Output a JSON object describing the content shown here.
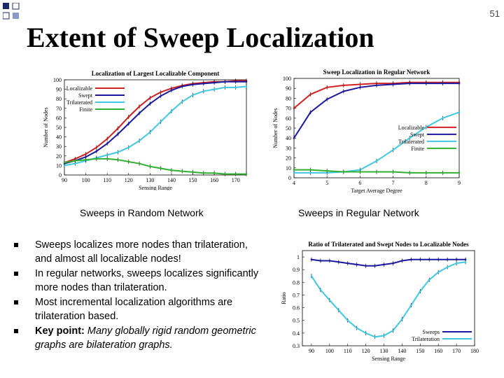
{
  "slide": {
    "title": "Extent of Sweep Localization",
    "page_number": "51",
    "caption_left": "Sweeps in Random Network",
    "caption_right": "Sweeps in Regular Network",
    "bullets": [
      {
        "text": "Sweeps localizes more nodes than trilateration, and almost all localizable nodes!"
      },
      {
        "text": "In regular networks, sweeps localizes significantly more nodes than trilateration."
      },
      {
        "text": "Most incremental localization algorithms are trilateration based."
      },
      {
        "bold": "Key point:",
        "italic": " Many globally rigid random geometric graphs are bilateration graphs."
      }
    ],
    "colors": {
      "localizable": "#d02020",
      "swept": "#1a1aa0",
      "trilaterated": "#40c8e0",
      "finite": "#30b030"
    }
  },
  "chart_data": [
    {
      "type": "line",
      "title": "Localization of Largest Localizable Component",
      "xlabel": "Sensing Range",
      "ylabel": "Number of Nodes",
      "xlim": [
        90,
        175
      ],
      "ylim": [
        0,
        100
      ],
      "xticks": [
        90,
        100,
        110,
        120,
        130,
        140,
        150,
        160,
        170
      ],
      "yticks": [
        0,
        10,
        20,
        30,
        40,
        50,
        60,
        70,
        80,
        90,
        100
      ],
      "x": [
        90,
        95,
        100,
        105,
        110,
        115,
        120,
        125,
        130,
        135,
        140,
        145,
        150,
        155,
        160,
        165,
        170,
        175
      ],
      "series": [
        {
          "name": "Localizable",
          "values": [
            13,
            17,
            22,
            29,
            38,
            49,
            61,
            72,
            81,
            87,
            91,
            94,
            96,
            97,
            98,
            98,
            99,
            99
          ]
        },
        {
          "name": "Swept",
          "values": [
            12,
            15,
            19,
            25,
            33,
            43,
            54,
            65,
            75,
            83,
            89,
            93,
            95,
            96,
            97,
            98,
            98,
            98
          ]
        },
        {
          "name": "Trilaterated",
          "values": [
            10,
            12,
            15,
            18,
            21,
            24,
            29,
            36,
            45,
            56,
            67,
            77,
            84,
            88,
            90,
            92,
            92,
            93
          ]
        },
        {
          "name": "Finite",
          "values": [
            13,
            15,
            16,
            17,
            17,
            16,
            14,
            12,
            9,
            7,
            5,
            4,
            3,
            2,
            2,
            1,
            1,
            1
          ]
        }
      ],
      "legend": "top-left"
    },
    {
      "type": "line",
      "title": "Sweep Localization in Regular Network",
      "xlabel": "Target Average Degree",
      "ylabel": "Number of Nodes",
      "xlim": [
        4,
        9
      ],
      "ylim": [
        0,
        100
      ],
      "xticks": [
        4,
        5,
        6,
        7,
        8,
        9
      ],
      "yticks": [
        0,
        10,
        20,
        30,
        40,
        50,
        60,
        70,
        80,
        90,
        100
      ],
      "x": [
        4,
        4.5,
        5,
        5.5,
        6,
        6.5,
        7,
        7.5,
        8,
        8.5,
        9
      ],
      "series": [
        {
          "name": "Localizable",
          "values": [
            70,
            84,
            91,
            93,
            94,
            95,
            95,
            96,
            96,
            96,
            96
          ]
        },
        {
          "name": "Swept",
          "values": [
            40,
            66,
            79,
            87,
            91,
            93,
            94,
            95,
            95,
            95,
            95
          ]
        },
        {
          "name": "Trilaterated",
          "values": [
            5,
            5,
            5,
            6,
            8,
            17,
            28,
            40,
            51,
            60,
            66
          ]
        },
        {
          "name": "Finite",
          "values": [
            8,
            8,
            7,
            6,
            6,
            6,
            6,
            5,
            5,
            5,
            5
          ]
        }
      ],
      "legend": "center-right"
    },
    {
      "type": "line",
      "title": "Ratio of Trilaterated and Swept Nodes to Localizable Nodes",
      "xlabel": "Sensing Range",
      "ylabel": "Ratio",
      "xlim": [
        85,
        180
      ],
      "ylim": [
        0.3,
        1.05
      ],
      "xticks": [
        90,
        100,
        110,
        120,
        130,
        140,
        150,
        160,
        170,
        180
      ],
      "yticks": [
        0.3,
        0.4,
        0.5,
        0.6,
        0.7,
        0.8,
        0.9,
        1
      ],
      "x": [
        90,
        95,
        100,
        105,
        110,
        115,
        120,
        125,
        130,
        135,
        140,
        145,
        150,
        155,
        160,
        165,
        170,
        175
      ],
      "series": [
        {
          "name": "Sweeps",
          "values": [
            0.98,
            0.97,
            0.97,
            0.96,
            0.95,
            0.94,
            0.93,
            0.93,
            0.94,
            0.95,
            0.97,
            0.98,
            0.98,
            0.98,
            0.98,
            0.98,
            0.98,
            0.98
          ]
        },
        {
          "name": "Trilateration",
          "values": [
            0.85,
            0.74,
            0.66,
            0.58,
            0.5,
            0.44,
            0.4,
            0.37,
            0.38,
            0.42,
            0.51,
            0.62,
            0.73,
            0.82,
            0.88,
            0.92,
            0.95,
            0.96
          ]
        }
      ],
      "legend": "bottom-right"
    }
  ]
}
